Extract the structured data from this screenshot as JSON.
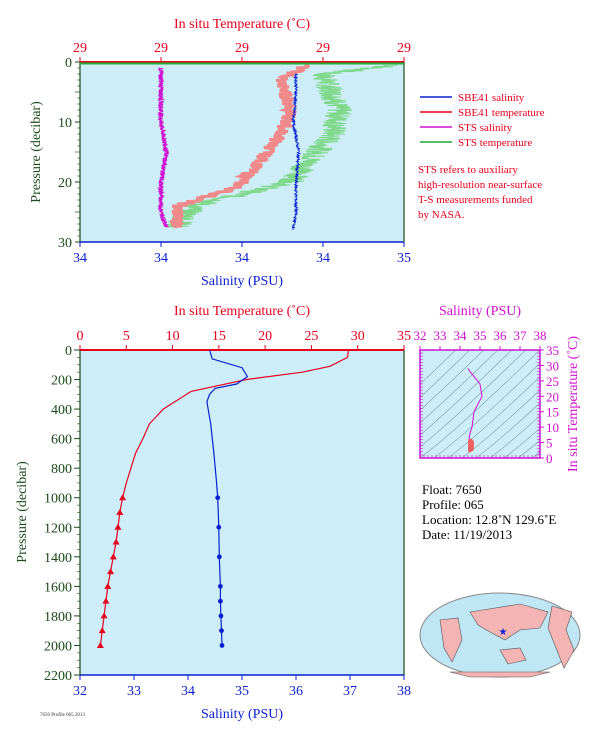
{
  "colors": {
    "panel_bg": "#cdeef8",
    "red": "#e8001c",
    "blue": "#0a1fd0",
    "magenta": "#d010d0",
    "green": "#22aa33",
    "pink": "#f08a8a",
    "lightgreen": "#7fd88a",
    "darkgreen": "#1a4a1a",
    "teal": "#0a6060"
  },
  "top_chart": {
    "top_axis_title": "In situ Temperature (˚C)",
    "top_ticks": [
      "29",
      "29",
      "29",
      "29",
      "29"
    ],
    "bottom_axis_title": "Salinity (PSU)",
    "bottom_ticks": [
      "34",
      "34",
      "34",
      "34",
      "35"
    ],
    "y_axis_title": "Pressure (decibar)",
    "y_ticks": [
      "0",
      "10",
      "20",
      "30"
    ]
  },
  "legend": {
    "items": [
      {
        "label": "SBE41 salinity",
        "color": "#0a1fd0"
      },
      {
        "label": "SBE41 temperature",
        "color": "#e8001c"
      },
      {
        "label": "STS salinity",
        "color": "#d010d0"
      },
      {
        "label": "STS temperature",
        "color": "#22aa33"
      }
    ],
    "note": [
      "STS refers to auxiliary",
      "high-resolution near-surface",
      "T-S measurements funded",
      "by NASA."
    ]
  },
  "main_chart": {
    "top_axis_title": "In situ Temperature (˚C)",
    "top_ticks": [
      "0",
      "5",
      "10",
      "15",
      "20",
      "25",
      "30",
      "35"
    ],
    "bottom_axis_title": "Salinity (PSU)",
    "bottom_ticks": [
      "32",
      "34",
      "36",
      "38"
    ],
    "bottom_ticks_full": [
      "32",
      "33",
      "34",
      "35",
      "36",
      "37",
      "38"
    ],
    "y_axis_title": "Pressure (decibar)",
    "y_ticks": [
      "0",
      "200",
      "400",
      "600",
      "800",
      "1000",
      "1200",
      "1400",
      "1600",
      "1800",
      "2000",
      "2200"
    ]
  },
  "ts_chart": {
    "top_axis_title": "Salinity (PSU)",
    "top_ticks": [
      "32",
      "33",
      "34",
      "35",
      "36",
      "37",
      "38"
    ],
    "right_axis_title": "In situ Temperature (˚C)",
    "right_ticks": [
      "0",
      "5",
      "10",
      "15",
      "20",
      "25",
      "30",
      "35"
    ]
  },
  "float_info": {
    "float_line": "Float:  7650",
    "profile_line": "Profile:  065",
    "location_line": "Location:  12.8˚N  129.6˚E",
    "date_line": "Date:  11/19/2013"
  },
  "footer_small": "7650 Profile 065 2013",
  "chart_data": [
    {
      "type": "line",
      "title": "",
      "xlabel": "Salinity (PSU) / In situ Temperature (˚C)",
      "ylabel": "Pressure (decibar)",
      "ylim": [
        30,
        0
      ],
      "series": [
        {
          "name": "SBE41 salinity",
          "x": [
            34.6,
            34.6,
            34.59,
            34.61,
            34.6,
            34.6,
            34.59
          ],
          "y": [
            2,
            5,
            10,
            15,
            20,
            25,
            28
          ]
        },
        {
          "name": "STS salinity",
          "x": [
            34.1,
            34.1,
            34.1,
            34.12,
            34.1,
            34.1,
            34.12
          ],
          "y": [
            1,
            5,
            10,
            15,
            20,
            25,
            27.5
          ]
        },
        {
          "name": "SBE41 temperature",
          "x_rel": [
            0.7,
            0.62,
            0.65,
            0.62,
            0.55,
            0.48,
            0.3,
            0.3
          ],
          "y": [
            0.5,
            3,
            8,
            12,
            17,
            21,
            24,
            27.5
          ]
        },
        {
          "name": "STS temperature",
          "x_rel": [
            0.98,
            0.75,
            0.8,
            0.78,
            0.7,
            0.65,
            0.35,
            0.3
          ],
          "y": [
            0.5,
            2,
            8,
            12,
            17,
            20,
            24,
            27.5
          ]
        }
      ]
    },
    {
      "type": "line",
      "title": "",
      "xlabel": "Salinity (PSU)",
      "ylabel": "Pressure (decibar)",
      "ylim": [
        2200,
        0
      ],
      "series": [
        {
          "name": "SBE41 temperature",
          "x_unit": "In situ Temperature (˚C)",
          "x": [
            29.0,
            28.9,
            27.0,
            24.0,
            18.0,
            12.0,
            9.0,
            7.5,
            6.8,
            6.0,
            5.5,
            5.0,
            4.6,
            4.3,
            4.1,
            3.9,
            3.6,
            3.3,
            3.0,
            2.8,
            2.6,
            2.4,
            2.2
          ],
          "y": [
            0,
            50,
            110,
            150,
            200,
            280,
            400,
            500,
            600,
            700,
            800,
            900,
            1000,
            1100,
            1200,
            1300,
            1400,
            1500,
            1600,
            1700,
            1800,
            1900,
            2000
          ]
        },
        {
          "name": "SBE41 salinity",
          "x_unit": "Salinity (PSU)",
          "x": [
            34.4,
            34.45,
            35.0,
            35.1,
            34.9,
            34.5,
            34.4,
            34.35,
            34.42,
            34.48,
            34.53,
            34.55,
            34.57,
            34.58,
            34.6,
            34.6,
            34.61,
            34.62,
            34.63
          ],
          "y": [
            0,
            60,
            120,
            180,
            230,
            260,
            300,
            350,
            500,
            700,
            900,
            1000,
            1200,
            1400,
            1600,
            1700,
            1800,
            1900,
            2000
          ]
        }
      ]
    },
    {
      "type": "scatter",
      "title": "",
      "xlabel": "Salinity (PSU)",
      "ylabel": "In situ Temperature (˚C)",
      "xlim": [
        32,
        38
      ],
      "ylim": [
        0,
        35
      ],
      "series": [
        {
          "name": "T-S profile",
          "x": [
            34.4,
            34.5,
            35.0,
            35.1,
            34.7,
            34.6,
            34.5,
            34.45,
            34.5,
            34.55,
            34.6
          ],
          "y": [
            29,
            28,
            24,
            20,
            15,
            10,
            8,
            6,
            5,
            4,
            2.5
          ]
        }
      ]
    }
  ]
}
